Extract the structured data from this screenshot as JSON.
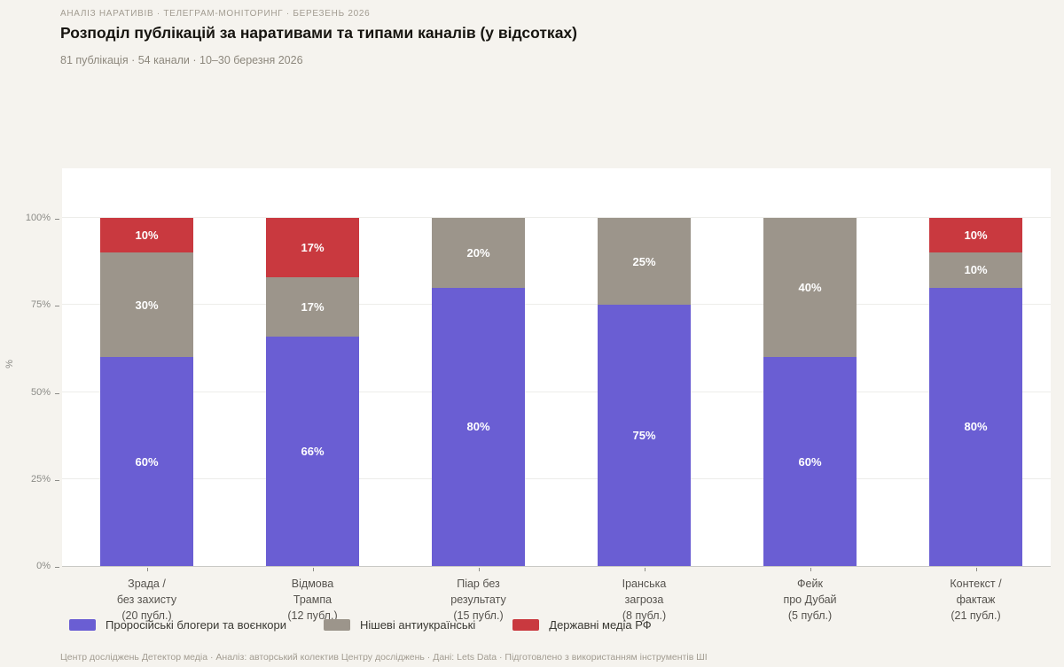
{
  "page": {
    "eyebrow": "АНАЛІЗ НАРАТИВІВ · ТЕЛЕГРАМ-МОНІТОРИНГ · БЕРЕЗЕНЬ 2026",
    "title": "Розподіл публікацій за наративами та типами каналів (у відсотках)",
    "subtitle": "81 публікація · 54 канали · 10–30 березня 2026",
    "footer": "Центр досліджень Детектор медіа · Аналіз: авторський колектив Центру досліджень · Дані: Lets Data · Підготовлено з використанням інструментів ШІ"
  },
  "colors": {
    "background": "#f5f3ee",
    "panel": "#ffffff",
    "grid": "#ededea",
    "axis_line": "#c9c9c5"
  },
  "chart_data": {
    "type": "bar",
    "stacked": true,
    "grid": true,
    "unit": "%",
    "ylabel": "%",
    "ylim": [
      0,
      100
    ],
    "yticks": [
      "0%",
      "25%",
      "50%",
      "75%",
      "100%"
    ],
    "legend_position": "bottom-left",
    "categories": [
      {
        "label_lines": [
          "Зрада /",
          "без захисту",
          "(20 публ.)"
        ]
      },
      {
        "label_lines": [
          "Відмова",
          "Трампа",
          "(12 публ.)"
        ]
      },
      {
        "label_lines": [
          "Піар без",
          "результату",
          "(15 публ.)"
        ]
      },
      {
        "label_lines": [
          "Іранська",
          "загроза",
          "(8 публ.)"
        ]
      },
      {
        "label_lines": [
          "Фейк",
          "про Дубай",
          "(5 публ.)"
        ]
      },
      {
        "label_lines": [
          "Контекст /",
          "фактаж",
          "(21 публ.)"
        ]
      }
    ],
    "series": [
      {
        "name": "Проросійські блогери та воєнкори",
        "color": "#6a5ed3",
        "values": [
          60,
          66,
          80,
          75,
          60,
          80
        ]
      },
      {
        "name": "Нішеві антиукраїнські",
        "color": "#9c958b",
        "values": [
          30,
          17,
          20,
          25,
          40,
          10
        ]
      },
      {
        "name": "Державні медіа РФ",
        "color": "#c9393f",
        "values": [
          10,
          17,
          0,
          0,
          0,
          10
        ]
      }
    ]
  }
}
